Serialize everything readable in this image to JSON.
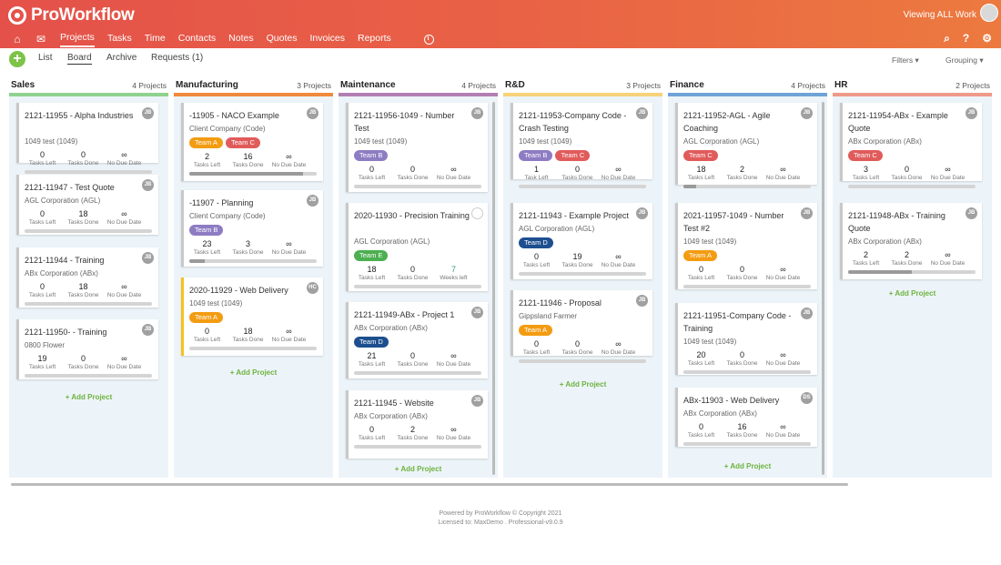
{
  "app": {
    "logo_text": "ProWorkflow",
    "viewing": "Viewing ALL Work"
  },
  "nav": {
    "items": [
      "Projects",
      "Tasks",
      "Time",
      "Contacts",
      "Notes",
      "Quotes",
      "Invoices",
      "Reports"
    ],
    "active": "Projects"
  },
  "subnav": {
    "tabs": [
      "List",
      "Board",
      "Archive",
      "Requests"
    ],
    "requests_count": "(1)",
    "filters": "Filters",
    "grouping": "Grouping"
  },
  "colors": {
    "accent_green": "#7cc348",
    "team_a": "#f39c12",
    "team_b": "#8e7cc3",
    "team_c": "#e15b5b",
    "team_d": "#1d4f8f",
    "team_e": "#4caf50"
  },
  "add_project_label": "+ Add Project",
  "columns": [
    {
      "title": "Sales",
      "count": "4 Projects",
      "accent": "#8fd18f",
      "cards": [
        {
          "title": "2121-11955 - Alpha Industries",
          "client": "1049 test (1049)",
          "badge": "JB",
          "tags": [],
          "stats": [
            [
              "0",
              "Tasks Left"
            ],
            [
              "0",
              "Tasks Done"
            ],
            [
              "∞",
              "No Due Date"
            ]
          ],
          "progress": 0
        },
        {
          "title": "2121-11947 - Test Quote",
          "client": "AGL Corporation (AGL)",
          "badge": "JB",
          "tags": [],
          "stats": [
            [
              "0",
              "Tasks Left"
            ],
            [
              "18",
              "Tasks Done"
            ],
            [
              "∞",
              "No Due Date"
            ]
          ],
          "progress": 0
        },
        {
          "title": "2121-11944 - Training",
          "client": "ABx Corporation (ABx)",
          "badge": "JB",
          "tags": [],
          "stats": [
            [
              "0",
              "Tasks Left"
            ],
            [
              "18",
              "Tasks Done"
            ],
            [
              "∞",
              "No Due Date"
            ]
          ],
          "progress": 0
        },
        {
          "title": "2121-11950- - Training",
          "client": "0800 Flower",
          "badge": "JB",
          "tags": [],
          "stats": [
            [
              "19",
              "Tasks Left"
            ],
            [
              "0",
              "Tasks Done"
            ],
            [
              "∞",
              "No Due Date"
            ]
          ],
          "progress": 0
        }
      ]
    },
    {
      "title": "Manufacturing",
      "count": "3 Projects",
      "accent": "#f08a3c",
      "cards": [
        {
          "title": "-11905 - NACO Example",
          "client": "Client Company (Code)",
          "badge": "JB",
          "tags": [
            "Team A",
            "Team C"
          ],
          "stats": [
            [
              "2",
              "Tasks Left"
            ],
            [
              "16",
              "Tasks Done"
            ],
            [
              "∞",
              "No Due Date"
            ]
          ],
          "progress": 0.89
        },
        {
          "title": "-11907 - Planning",
          "client": "Client Company (Code)",
          "badge": "JB",
          "tags": [
            "Team B"
          ],
          "stats": [
            [
              "23",
              "Tasks Left"
            ],
            [
              "3",
              "Tasks Done"
            ],
            [
              "∞",
              "No Due Date"
            ]
          ],
          "progress": 0.12
        },
        {
          "title": "2020-11929 - Web Delivery",
          "client": "1049 test (1049)",
          "badge": "HC",
          "tags": [
            "Team A"
          ],
          "stats": [
            [
              "0",
              "Tasks Left"
            ],
            [
              "18",
              "Tasks Done"
            ],
            [
              "∞",
              "No Due Date"
            ]
          ],
          "progress": 0,
          "yellow": true
        }
      ]
    },
    {
      "title": "Maintenance",
      "count": "4 Projects",
      "accent": "#b27fb2",
      "cards": [
        {
          "title": "2121-11956-1049 - Number Test",
          "client": "1049 test (1049)",
          "badge": "JB",
          "tags": [
            "Team B"
          ],
          "stats": [
            [
              "0",
              "Tasks Left"
            ],
            [
              "0",
              "Tasks Done"
            ],
            [
              "∞",
              "No Due Date"
            ]
          ],
          "progress": 0
        },
        {
          "title": "2020-11930 - Precision Training",
          "client": "AGL Corporation (AGL)",
          "badge": "",
          "tags": [
            "Team E"
          ],
          "stats": [
            [
              "18",
              "Tasks Left"
            ],
            [
              "0",
              "Tasks Done"
            ],
            [
              "7",
              "Weeks left"
            ]
          ],
          "progress": 0
        },
        {
          "title": "2121-11949-ABx - Project 1",
          "client": "ABx Corporation (ABx)",
          "badge": "JB",
          "tags": [
            "Team D"
          ],
          "stats": [
            [
              "21",
              "Tasks Left"
            ],
            [
              "0",
              "Tasks Done"
            ],
            [
              "∞",
              "No Due Date"
            ]
          ],
          "progress": 0
        },
        {
          "title": "2121-11945 - Website",
          "client": "ABx Corporation (ABx)",
          "badge": "JB",
          "tags": [],
          "stats": [
            [
              "0",
              "Tasks Left"
            ],
            [
              "2",
              "Tasks Done"
            ],
            [
              "∞",
              "No Due Date"
            ]
          ],
          "progress": 0
        }
      ]
    },
    {
      "title": "R&D",
      "count": "3 Projects",
      "accent": "#f7d27a",
      "cards": [
        {
          "title": "2121-11953-Company Code - Crash Testing",
          "client": "1049 test (1049)",
          "badge": "JB",
          "tags": [
            "Team B",
            "Team C"
          ],
          "stats": [
            [
              "1",
              "Task Left"
            ],
            [
              "0",
              "Tasks Done"
            ],
            [
              "∞",
              "No Due Date"
            ]
          ],
          "progress": 0
        },
        {
          "title": "2121-11943 - Example Project",
          "client": "AGL Corporation (AGL)",
          "badge": "JB",
          "tags": [
            "Team D"
          ],
          "stats": [
            [
              "0",
              "Tasks Left"
            ],
            [
              "19",
              "Tasks Done"
            ],
            [
              "∞",
              "No Due Date"
            ]
          ],
          "progress": 0
        },
        {
          "title": "2121-11946 - Proposal",
          "client": "Gippsland Farmer",
          "badge": "JB",
          "tags": [
            "Team A"
          ],
          "stats": [
            [
              "0",
              "Tasks Left"
            ],
            [
              "0",
              "Tasks Done"
            ],
            [
              "∞",
              "No Due Date"
            ]
          ],
          "progress": 0
        }
      ]
    },
    {
      "title": "Finance",
      "count": "4 Projects",
      "accent": "#6fa3d8",
      "cards": [
        {
          "title": "2121-11952-AGL - Agile Coaching",
          "client": "AGL Corporation (AGL)",
          "badge": "JB",
          "tags": [
            "Team C"
          ],
          "stats": [
            [
              "18",
              "Tasks Left"
            ],
            [
              "2",
              "Tasks Done"
            ],
            [
              "∞",
              "No Due Date"
            ]
          ],
          "progress": 0.1
        },
        {
          "title": "2021-11957-1049 - Number Test #2",
          "client": "1049 test (1049)",
          "badge": "JB",
          "tags": [
            "Team A"
          ],
          "stats": [
            [
              "0",
              "Tasks Left"
            ],
            [
              "0",
              "Tasks Done"
            ],
            [
              "∞",
              "No Due Date"
            ]
          ],
          "progress": 0
        },
        {
          "title": "2121-11951-Company Code - Training",
          "client": "1049 test (1049)",
          "badge": "JB",
          "tags": [],
          "stats": [
            [
              "20",
              "Tasks Left"
            ],
            [
              "0",
              "Tasks Done"
            ],
            [
              "∞",
              "No Due Date"
            ]
          ],
          "progress": 0
        },
        {
          "title": "ABx-11903 - Web Delivery",
          "client": "ABx Corporation (ABx)",
          "badge": "DS",
          "tags": [],
          "stats": [
            [
              "0",
              "Tasks Left"
            ],
            [
              "16",
              "Tasks Done"
            ],
            [
              "∞",
              "No Due Date"
            ]
          ],
          "progress": 0
        }
      ]
    },
    {
      "title": "HR",
      "count": "2 Projects",
      "accent": "#ef9a8a",
      "cards": [
        {
          "title": "2121-11954-ABx - Example Quote",
          "client": "ABx Corporation (ABx)",
          "badge": "JB",
          "tags": [
            "Team C"
          ],
          "stats": [
            [
              "3",
              "Tasks Left"
            ],
            [
              "0",
              "Tasks Done"
            ],
            [
              "∞",
              "No Due Date"
            ]
          ],
          "progress": 0
        },
        {
          "title": "2121-11948-ABx - Training Quote",
          "client": "ABx Corporation (ABx)",
          "badge": "JB",
          "tags": [],
          "stats": [
            [
              "2",
              "Tasks Left"
            ],
            [
              "2",
              "Tasks Done"
            ],
            [
              "∞",
              "No Due Date"
            ]
          ],
          "progress": 0.5
        }
      ]
    }
  ],
  "footer": {
    "line1": "Powered by ProWorkflow © Copyright 2021",
    "line2": "Licensed to: MaxDemo . Professional-v9.0.9"
  }
}
